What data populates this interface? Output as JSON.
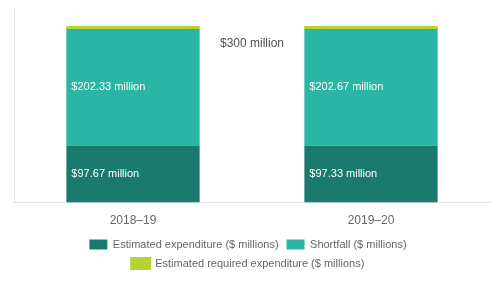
{
  "chart_data": {
    "type": "bar",
    "stacked": true,
    "categories": [
      "2018–19",
      "2019–20"
    ],
    "series": [
      {
        "name": "Estimated expenditure ($ millions)",
        "color": "#1a7a6e",
        "values": [
          97.67,
          97.33
        ],
        "value_labels": [
          "$97.67 million",
          "$97.33 million"
        ]
      },
      {
        "name": "Shortfall ($ millions)",
        "color": "#2ab5a5",
        "values": [
          202.33,
          202.67
        ],
        "value_labels": [
          "$202.33 million",
          "$202.67 million"
        ]
      },
      {
        "name": "Estimated required expenditure ($ millions)",
        "type": "line",
        "color": "#b5d334",
        "values": [
          300.0,
          300.0
        ]
      }
    ],
    "annotation": "$300 million",
    "ylim": [
      0,
      330
    ],
    "data_labels": true,
    "tick_labels": "x",
    "grid": false,
    "legend": "bottom"
  }
}
